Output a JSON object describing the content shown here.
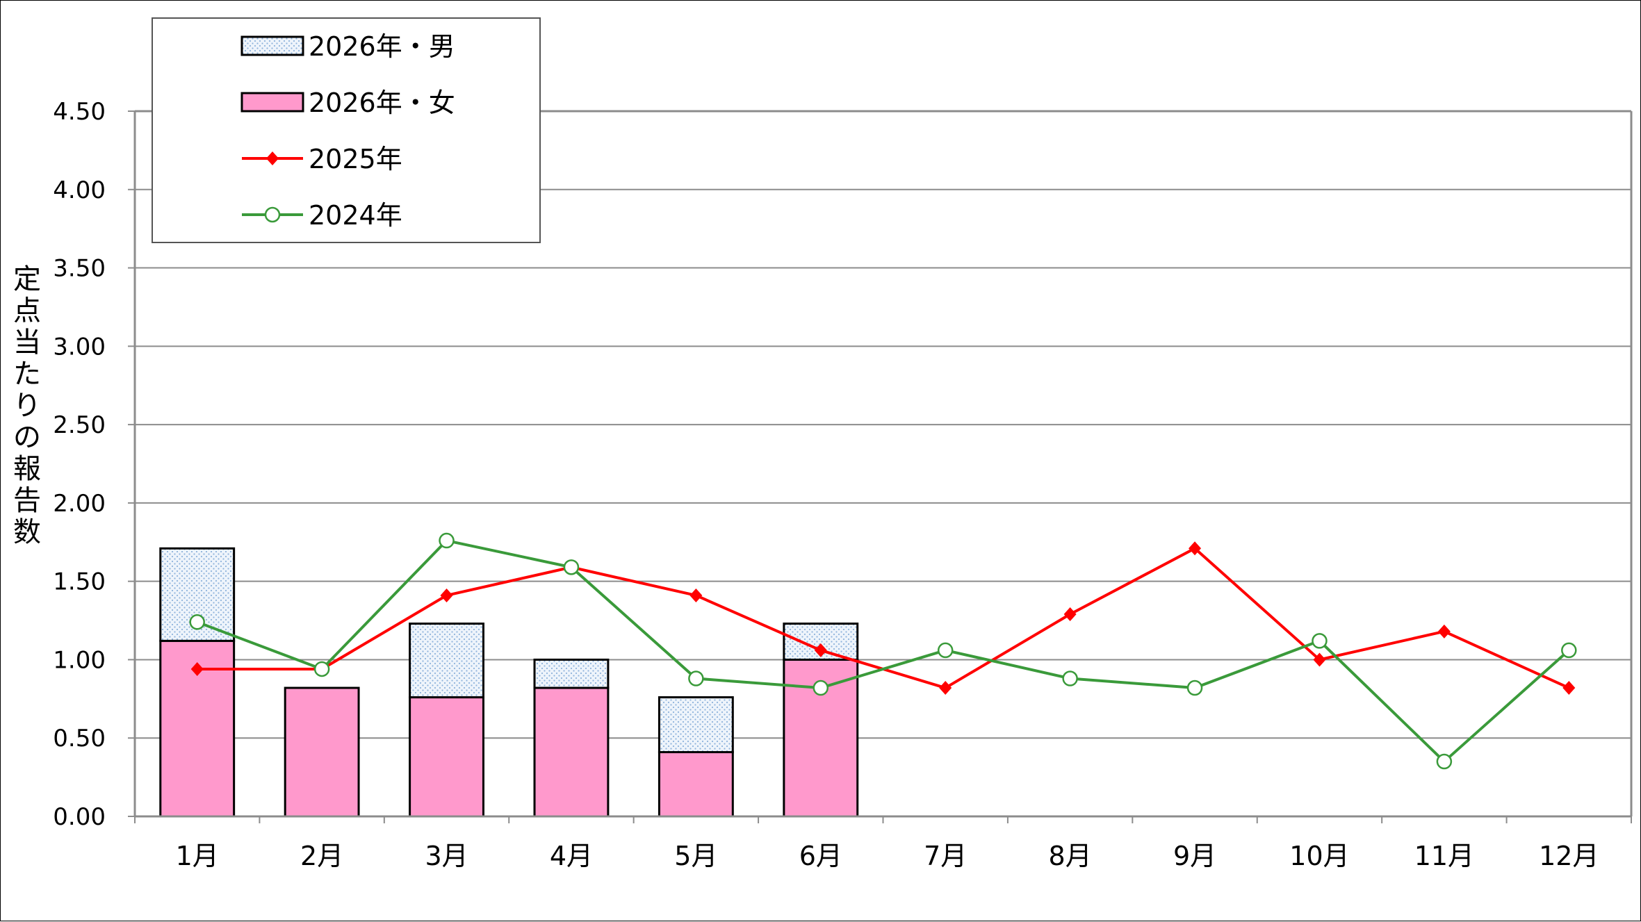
{
  "chart_data": {
    "type": "bar",
    "title": "",
    "xlabel": "",
    "ylabel": "定点当たりの報告数",
    "ylim": [
      0,
      4.5
    ],
    "ytick_step": 0.5,
    "yticks": [
      "0.00",
      "0.50",
      "1.00",
      "1.50",
      "2.00",
      "2.50",
      "3.00",
      "3.50",
      "4.00",
      "4.50"
    ],
    "grid": true,
    "legend_position": "top-left",
    "categories": [
      "1月",
      "2月",
      "3月",
      "4月",
      "5月",
      "6月",
      "7月",
      "8月",
      "9月",
      "10月",
      "11月",
      "12月"
    ],
    "bar_series": [
      {
        "name": "2026年・女",
        "color": "#ff99cc",
        "values": [
          1.12,
          0.82,
          0.76,
          0.82,
          0.41,
          1.0
        ]
      },
      {
        "name": "2026年・男",
        "color": "#dce9f7",
        "values": [
          0.59,
          0.0,
          0.47,
          0.18,
          0.35,
          0.23
        ]
      }
    ],
    "line_series": [
      {
        "name": "2025年",
        "color": "#ff0000",
        "marker": "diamond",
        "values": [
          0.94,
          0.94,
          1.41,
          1.59,
          1.41,
          1.06,
          0.82,
          1.29,
          1.71,
          1.0,
          1.18,
          0.82
        ]
      },
      {
        "name": "2024年",
        "color": "#3a9a3a",
        "marker": "open-circle",
        "values": [
          1.24,
          0.94,
          1.76,
          1.59,
          0.88,
          0.82,
          1.06,
          0.88,
          0.82,
          1.12,
          0.35,
          1.06
        ]
      }
    ],
    "legend_order": [
      "2026年・男",
      "2026年・女",
      "2025年",
      "2024年"
    ]
  }
}
